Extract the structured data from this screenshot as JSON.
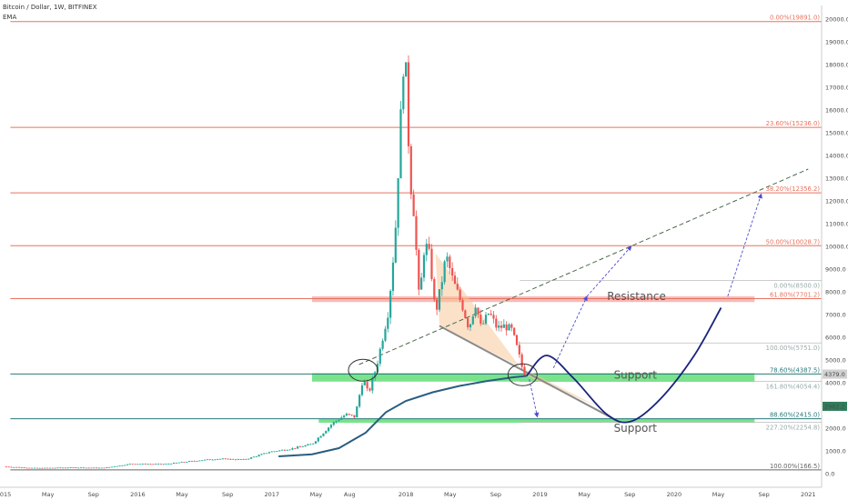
{
  "header": {
    "symbol": "Bitcoin / Dollar, 1W, BITFINEX",
    "indicator": "EMA"
  },
  "colors": {
    "up": "#26a69a",
    "down": "#ef5350",
    "fib_line": "#e8735f",
    "support_zone": "#4cd964",
    "resistance_zone": "#f08080",
    "ema": "#2a5d80",
    "projection": "#1a237e",
    "wedge": "#f5c89a",
    "trend": "#555555"
  },
  "chart_data": {
    "type": "candlestick",
    "x_ticks": [
      "2015",
      "May",
      "Sep",
      "2016",
      "May",
      "Sep",
      "2017",
      "May",
      "Aug",
      "2018",
      "May",
      "Sep",
      "2019",
      "May",
      "Sep",
      "2020",
      "May",
      "Sep",
      "2021"
    ],
    "y_ticks": [
      0.0,
      1000.0,
      2000.0,
      3000.0,
      4000.0,
      5000.0,
      6000.0,
      7000.0,
      8000.0,
      9000.0,
      10000.0,
      11000.0,
      12000.0,
      13000.0,
      14000.0,
      15000.0,
      16000.0,
      17000.0,
      18000.0,
      19000.0,
      20000.0
    ],
    "ylim": [
      -600,
      20600
    ],
    "fib_levels": [
      {
        "label": "0.00%(19891.0)",
        "value": 19891.0
      },
      {
        "label": "23.60%(15236.0)",
        "value": 15236.0
      },
      {
        "label": "38.20%(12356.2)",
        "value": 12356.2
      },
      {
        "label": "50.00%(10028.7)",
        "value": 10028.7
      },
      {
        "label": "61.80%(7701.2)",
        "value": 7701.2
      },
      {
        "label": "78.60%(4387.5)",
        "value": 4387.5
      },
      {
        "label": "88.60%(2415.0)",
        "value": 2415.0
      },
      {
        "label": "100.00%(166.5)",
        "value": 166.5
      }
    ],
    "faint_levels": [
      {
        "label": "0.00%(8500.0)",
        "value": 8500.0
      },
      {
        "label": "100.00%(5751.0)",
        "value": 5751.0
      },
      {
        "label": "161.80%(4054.4)",
        "value": 4054.4
      },
      {
        "label": "227.20%(2254.8)",
        "value": 2254.8
      }
    ],
    "price_labels": [
      {
        "label": "4379.0",
        "value": 4379.0
      },
      {
        "label": "2962.2",
        "value": 2962.2
      }
    ],
    "zones": [
      {
        "name": "resistance",
        "label": "Resistance",
        "from": 7550,
        "to": 7800
      },
      {
        "name": "support-upper",
        "label": "Support",
        "from": 4050,
        "to": 4420
      },
      {
        "name": "support-lower",
        "label": "Support",
        "from": 2240,
        "to": 2420
      }
    ],
    "price_path": [
      [
        2015.0,
        310
      ],
      [
        2015.25,
        240
      ],
      [
        2015.5,
        270
      ],
      [
        2015.75,
        250
      ],
      [
        2015.95,
        430
      ],
      [
        2016.2,
        420
      ],
      [
        2016.45,
        580
      ],
      [
        2016.6,
        650
      ],
      [
        2016.8,
        620
      ],
      [
        2016.98,
        950
      ],
      [
        2017.15,
        1100
      ],
      [
        2017.3,
        1300
      ],
      [
        2017.45,
        2200
      ],
      [
        2017.55,
        2600
      ],
      [
        2017.62,
        2500
      ],
      [
        2017.68,
        4200
      ],
      [
        2017.72,
        3500
      ],
      [
        2017.78,
        4700
      ],
      [
        2017.82,
        5800
      ],
      [
        2017.87,
        7200
      ],
      [
        2017.92,
        10500
      ],
      [
        2017.96,
        15500
      ],
      [
        2017.99,
        19100
      ],
      [
        2018.03,
        13000
      ],
      [
        2018.06,
        11500
      ],
      [
        2018.1,
        7500
      ],
      [
        2018.14,
        10200
      ],
      [
        2018.18,
        9500
      ],
      [
        2018.22,
        7000
      ],
      [
        2018.26,
        8200
      ],
      [
        2018.3,
        9600
      ],
      [
        2018.35,
        8500
      ],
      [
        2018.42,
        7400
      ],
      [
        2018.47,
        6400
      ],
      [
        2018.52,
        7500
      ],
      [
        2018.56,
        6400
      ],
      [
        2018.62,
        7100
      ],
      [
        2018.68,
        6400
      ],
      [
        2018.74,
        6500
      ],
      [
        2018.79,
        6300
      ],
      [
        2018.83,
        5500
      ],
      [
        2018.88,
        4379
      ]
    ],
    "ema_path": [
      [
        2017.05,
        760
      ],
      [
        2017.3,
        850
      ],
      [
        2017.5,
        1120
      ],
      [
        2017.7,
        1800
      ],
      [
        2017.85,
        2700
      ],
      [
        2018.0,
        3200
      ],
      [
        2018.2,
        3580
      ],
      [
        2018.4,
        3860
      ],
      [
        2018.6,
        4070
      ],
      [
        2018.8,
        4240
      ],
      [
        2018.9,
        4300
      ]
    ],
    "projection": [
      [
        2018.9,
        4300
      ],
      [
        2019.05,
        5200
      ],
      [
        2019.25,
        4200
      ],
      [
        2019.5,
        2600
      ],
      [
        2019.68,
        2300
      ],
      [
        2019.9,
        3300
      ],
      [
        2020.15,
        5200
      ],
      [
        2020.35,
        7300
      ]
    ],
    "wedge": [
      [
        2018.22,
        9700
      ],
      [
        2018.9,
        4300
      ],
      [
        2019.45,
        2900
      ],
      [
        2018.25,
        6500
      ]
    ],
    "trendlines": [
      {
        "from": [
          2018.25,
          6500
        ],
        "to": [
          2019.6,
          2250
        ],
        "style": "solid"
      },
      {
        "from": [
          2017.65,
          4800
        ],
        "to": [
          2021.0,
          13400
        ],
        "style": "dashed"
      }
    ],
    "arrows": [
      {
        "from": [
          2019.1,
          4650
        ],
        "to": [
          2019.35,
          7800
        ]
      },
      {
        "from": [
          2019.35,
          7800
        ],
        "to": [
          2019.68,
          10000
        ]
      },
      {
        "from": [
          2020.4,
          7800
        ],
        "to": [
          2020.65,
          12300
        ]
      },
      {
        "from": [
          2018.92,
          4150
        ],
        "to": [
          2018.98,
          2500
        ]
      }
    ],
    "ellipses": [
      [
        2017.68,
        4550
      ],
      [
        2018.87,
        4350
      ]
    ]
  }
}
